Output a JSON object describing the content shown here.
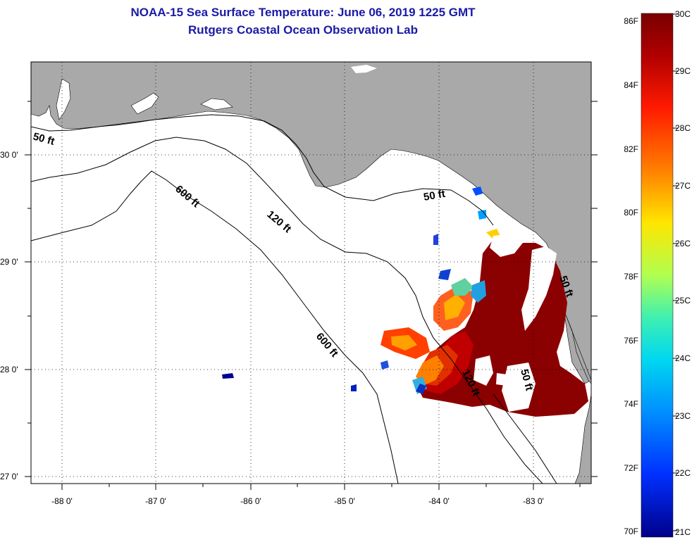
{
  "title": {
    "line1": "NOAA-15 Sea Surface Temperature:  June 06, 2019 1225 GMT",
    "line2": "Rutgers Coastal Ocean Observation Lab"
  },
  "map": {
    "lat_labels": [
      "30 0'",
      "29 0'",
      "28 0'",
      "27 0'"
    ],
    "lon_labels": [
      "-88 0'",
      "-87 0'",
      "-86 0'",
      "-85 0'",
      "-84 0'",
      "-83 0'"
    ],
    "contour_labels": {
      "c50_west": "50 ft",
      "c50_east": "50 ft",
      "c120": "120 ft",
      "c600_north": "600 ft",
      "c600_south": "600 ft",
      "c120_south": "120 ft",
      "c50_south": "50 ft",
      "c50_coast": "50 ft"
    },
    "colors": {
      "land": "#a9a9a9",
      "water": "#ffffff",
      "grid": "#000000"
    }
  },
  "colorbar": {
    "fahrenheit": [
      "86F",
      "84F",
      "82F",
      "80F",
      "78F",
      "76F",
      "74F",
      "72F",
      "70F"
    ],
    "celsius": [
      "30C",
      "29C",
      "28C",
      "27C",
      "26C",
      "25C",
      "24C",
      "23C",
      "22C",
      "21C"
    ],
    "stops": [
      "#800000",
      "#c00000",
      "#ff2000",
      "#ff8000",
      "#ffe000",
      "#a0ff60",
      "#20e0e0",
      "#0080ff",
      "#0020ff",
      "#000090"
    ]
  }
}
